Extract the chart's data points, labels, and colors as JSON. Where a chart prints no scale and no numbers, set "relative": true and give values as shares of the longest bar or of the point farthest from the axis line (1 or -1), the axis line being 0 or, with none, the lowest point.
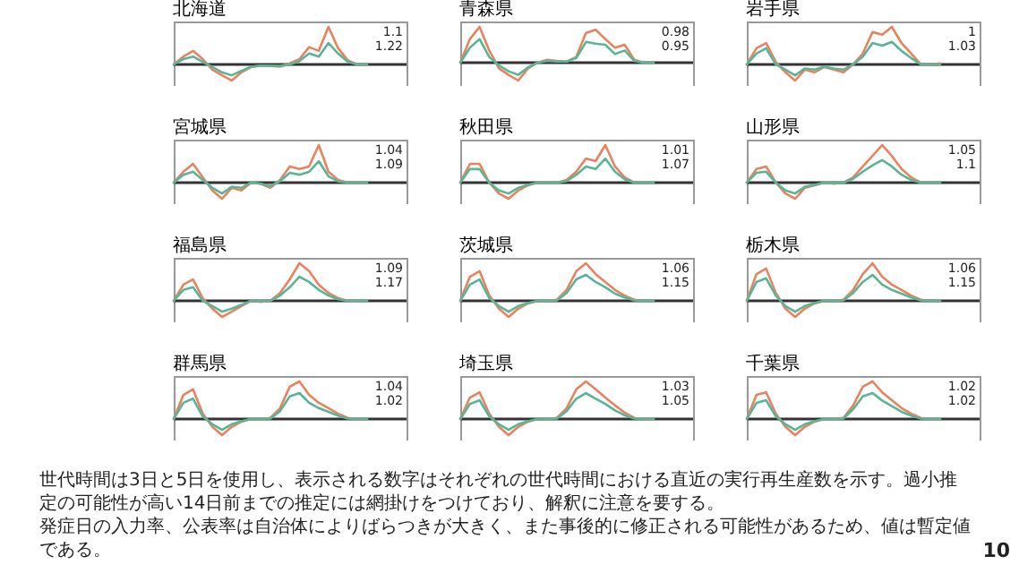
{
  "chart_data": [
    {
      "type": "line",
      "title": "北海道",
      "relative": true,
      "categories": [
        null,
        null,
        null,
        null,
        null,
        null,
        null,
        null,
        null,
        null,
        null,
        null,
        null,
        null,
        null,
        null,
        null,
        null,
        null,
        null,
        null
      ],
      "series": [
        {
          "color": "#e8825f",
          "values": [
            0,
            0.21,
            0.36,
            0.14,
            -0.14,
            -0.29,
            -0.43,
            -0.21,
            -0.07,
            -0.03,
            -0.04,
            -0.06,
            0.03,
            0.14,
            0.46,
            0.36,
            1,
            0.43,
            0.11,
            0,
            0
          ]
        },
        {
          "color": "#5ab497",
          "values": [
            0,
            0.14,
            0.21,
            0.07,
            -0.07,
            -0.21,
            -0.29,
            -0.17,
            -0.06,
            -0.03,
            -0.04,
            -0.04,
            0,
            0.09,
            0.29,
            0.21,
            0.57,
            0.29,
            0.07,
            0,
            0
          ]
        }
      ],
      "annotations": [
        "1.1",
        "1.22"
      ]
    },
    {
      "type": "line",
      "title": "青森県",
      "relative": true,
      "categories": [
        null,
        null,
        null,
        null,
        null,
        null,
        null,
        null,
        null,
        null,
        null,
        null,
        null,
        null,
        null,
        null,
        null,
        null,
        null,
        null,
        null
      ],
      "series": [
        {
          "color": "#e8825f",
          "values": [
            0,
            0.66,
            1,
            0.34,
            -0.16,
            -0.34,
            -0.5,
            -0.16,
            0,
            0.08,
            0.05,
            0.03,
            0.16,
            0.83,
            0.92,
            0.66,
            0.42,
            0.5,
            0.08,
            0,
            0
          ]
        },
        {
          "color": "#5ab497",
          "values": [
            0,
            0.42,
            0.66,
            0.16,
            -0.08,
            -0.24,
            -0.34,
            -0.13,
            0,
            0.05,
            0.03,
            0.03,
            0.13,
            0.58,
            0.53,
            0.5,
            0.24,
            0.34,
            0.05,
            0,
            0
          ]
        }
      ],
      "annotations": [
        "0.98",
        "0.95"
      ]
    },
    {
      "type": "line",
      "title": "岩手県",
      "relative": true,
      "categories": [
        null,
        null,
        null,
        null,
        null,
        null,
        null,
        null,
        null,
        null,
        null,
        null,
        null,
        null,
        null,
        null,
        null,
        null,
        null,
        null,
        null
      ],
      "series": [
        {
          "color": "#e8825f",
          "values": [
            0,
            0.43,
            0.57,
            0.07,
            -0.21,
            -0.43,
            -0.14,
            -0.21,
            -0.07,
            -0.14,
            -0.21,
            0,
            0.29,
            0.86,
            0.79,
            1,
            0.57,
            0.29,
            0,
            0,
            0.03
          ]
        },
        {
          "color": "#5ab497",
          "values": [
            0,
            0.29,
            0.43,
            0,
            -0.14,
            -0.29,
            -0.11,
            -0.14,
            -0.06,
            -0.11,
            -0.14,
            0,
            0.21,
            0.57,
            0.5,
            0.6,
            0.36,
            0.17,
            0,
            0,
            0
          ]
        }
      ],
      "annotations": [
        "1",
        "1.03"
      ]
    },
    {
      "type": "line",
      "title": "宮城県",
      "relative": true,
      "categories": [
        null,
        null,
        null,
        null,
        null,
        null,
        null,
        null,
        null,
        null,
        null,
        null,
        null,
        null,
        null,
        null,
        null,
        null,
        null,
        null,
        null
      ],
      "series": [
        {
          "color": "#e8825f",
          "values": [
            0,
            0.29,
            0.5,
            0.14,
            -0.21,
            -0.43,
            -0.14,
            -0.21,
            0,
            -0.03,
            -0.14,
            0.07,
            0.43,
            0.36,
            0.43,
            1,
            0.29,
            0.07,
            0,
            0,
            0
          ]
        },
        {
          "color": "#5ab497",
          "values": [
            0,
            0.21,
            0.29,
            0.07,
            -0.14,
            -0.29,
            -0.11,
            -0.14,
            0,
            -0.03,
            -0.09,
            0.04,
            0.26,
            0.21,
            0.29,
            0.57,
            0.17,
            0.03,
            0,
            0,
            0
          ]
        }
      ],
      "annotations": [
        "1.04",
        "1.09"
      ]
    },
    {
      "type": "line",
      "title": "秋田県",
      "relative": true,
      "categories": [
        null,
        null,
        null,
        null,
        null,
        null,
        null,
        null,
        null,
        null,
        null,
        null,
        null,
        null,
        null,
        null,
        null,
        null,
        null,
        null,
        null
      ],
      "series": [
        {
          "color": "#e8825f",
          "values": [
            0,
            0.5,
            0.5,
            0,
            -0.29,
            -0.43,
            -0.21,
            -0.07,
            0,
            0,
            0,
            0.07,
            0.29,
            0.64,
            0.57,
            1,
            0.43,
            0.14,
            0,
            0,
            0
          ]
        },
        {
          "color": "#5ab497",
          "values": [
            0,
            0.36,
            0.36,
            0,
            -0.21,
            -0.29,
            -0.14,
            -0.06,
            0,
            0,
            0,
            0.04,
            0.21,
            0.43,
            0.36,
            0.64,
            0.29,
            0.09,
            0,
            0,
            0
          ]
        }
      ],
      "annotations": [
        "1.01",
        "1.07"
      ]
    },
    {
      "type": "line",
      "title": "山形県",
      "relative": true,
      "categories": [
        null,
        null,
        null,
        null,
        null,
        null,
        null,
        null,
        null,
        null,
        null,
        null,
        null,
        null,
        null,
        null,
        null,
        null,
        null,
        null,
        null
      ],
      "series": [
        {
          "color": "#e8825f",
          "values": [
            0,
            0.36,
            0.43,
            0,
            -0.29,
            -0.43,
            -0.14,
            -0.07,
            0,
            -0.03,
            0,
            0.14,
            0.43,
            0.71,
            1,
            0.71,
            0.36,
            0.14,
            0,
            0,
            0
          ]
        },
        {
          "color": "#5ab497",
          "values": [
            0,
            0.26,
            0.29,
            0,
            -0.21,
            -0.29,
            -0.11,
            -0.06,
            0,
            -0.01,
            0,
            0.1,
            0.29,
            0.46,
            0.6,
            0.43,
            0.21,
            0.07,
            0,
            0,
            0
          ]
        }
      ],
      "annotations": [
        "1.05",
        "1.1"
      ]
    },
    {
      "type": "line",
      "title": "福島県",
      "relative": true,
      "categories": [
        null,
        null,
        null,
        null,
        null,
        null,
        null,
        null,
        null,
        null,
        null,
        null,
        null,
        null,
        null,
        null,
        null,
        null,
        null,
        null,
        null
      ],
      "series": [
        {
          "color": "#e8825f",
          "values": [
            0,
            0.43,
            0.57,
            0.07,
            -0.21,
            -0.43,
            -0.29,
            -0.14,
            0,
            -0.03,
            0,
            0.21,
            0.57,
            1,
            0.79,
            0.43,
            0.21,
            0.07,
            0,
            0,
            0
          ]
        },
        {
          "color": "#5ab497",
          "values": [
            0,
            0.29,
            0.36,
            0,
            -0.14,
            -0.29,
            -0.21,
            -0.11,
            0,
            -0.01,
            0,
            0.14,
            0.36,
            0.64,
            0.5,
            0.29,
            0.14,
            0.04,
            0,
            0,
            0
          ]
        }
      ],
      "annotations": [
        "1.09",
        "1.17"
      ]
    },
    {
      "type": "line",
      "title": "茨城県",
      "relative": true,
      "categories": [
        null,
        null,
        null,
        null,
        null,
        null,
        null,
        null,
        null,
        null,
        null,
        null,
        null,
        null,
        null,
        null,
        null,
        null,
        null,
        null,
        null
      ],
      "series": [
        {
          "color": "#e8825f",
          "values": [
            0,
            0.64,
            0.79,
            0.14,
            -0.21,
            -0.43,
            -0.21,
            -0.07,
            0,
            0,
            0.03,
            0.29,
            0.79,
            1,
            0.71,
            0.5,
            0.29,
            0.14,
            0.03,
            0,
            0
          ]
        },
        {
          "color": "#5ab497",
          "values": [
            0,
            0.43,
            0.57,
            0.07,
            -0.14,
            -0.29,
            -0.14,
            -0.06,
            0,
            0,
            0.01,
            0.21,
            0.57,
            0.69,
            0.5,
            0.36,
            0.19,
            0.09,
            0.01,
            0,
            0
          ]
        }
      ],
      "annotations": [
        "1.06",
        "1.15"
      ]
    },
    {
      "type": "line",
      "title": "栃木県",
      "relative": true,
      "categories": [
        null,
        null,
        null,
        null,
        null,
        null,
        null,
        null,
        null,
        null,
        null,
        null,
        null,
        null,
        null,
        null,
        null,
        null,
        null,
        null,
        null
      ],
      "series": [
        {
          "color": "#e8825f",
          "values": [
            0,
            0.71,
            0.86,
            0.21,
            -0.21,
            -0.43,
            -0.21,
            -0.07,
            0,
            0,
            0.03,
            0.29,
            0.71,
            1,
            0.64,
            0.43,
            0.29,
            0.14,
            0.03,
            0,
            0
          ]
        },
        {
          "color": "#5ab497",
          "values": [
            0,
            0.5,
            0.6,
            0.14,
            -0.14,
            -0.29,
            -0.14,
            -0.06,
            0,
            0,
            0.01,
            0.21,
            0.5,
            0.69,
            0.43,
            0.29,
            0.19,
            0.09,
            0.01,
            0,
            0
          ]
        }
      ],
      "annotations": [
        "1.06",
        "1.15"
      ]
    },
    {
      "type": "line",
      "title": "群馬県",
      "relative": true,
      "categories": [
        null,
        null,
        null,
        null,
        null,
        null,
        null,
        null,
        null,
        null,
        null,
        null,
        null,
        null,
        null,
        null,
        null,
        null,
        null,
        null,
        null
      ],
      "series": [
        {
          "color": "#e8825f",
          "values": [
            0,
            0.64,
            0.79,
            0.14,
            -0.21,
            -0.43,
            -0.21,
            -0.07,
            0,
            0,
            0.03,
            0.29,
            0.86,
            1,
            0.64,
            0.43,
            0.29,
            0.14,
            0.03,
            0,
            0
          ]
        },
        {
          "color": "#5ab497",
          "values": [
            0,
            0.43,
            0.54,
            0.07,
            -0.14,
            -0.29,
            -0.14,
            -0.06,
            0,
            0,
            0.01,
            0.21,
            0.6,
            0.69,
            0.43,
            0.29,
            0.19,
            0.09,
            0.01,
            0,
            0
          ]
        }
      ],
      "annotations": [
        "1.04",
        "1.02"
      ]
    },
    {
      "type": "line",
      "title": "埼玉県",
      "relative": true,
      "categories": [
        null,
        null,
        null,
        null,
        null,
        null,
        null,
        null,
        null,
        null,
        null,
        null,
        null,
        null,
        null,
        null,
        null,
        null,
        null,
        null,
        null
      ],
      "series": [
        {
          "color": "#e8825f",
          "values": [
            0,
            0.57,
            0.71,
            0.14,
            -0.21,
            -0.43,
            -0.21,
            -0.07,
            0,
            0,
            0.03,
            0.29,
            0.79,
            1,
            0.79,
            0.57,
            0.36,
            0.17,
            0.03,
            0,
            0
          ]
        },
        {
          "color": "#5ab497",
          "values": [
            0,
            0.4,
            0.5,
            0.07,
            -0.14,
            -0.29,
            -0.14,
            -0.06,
            0,
            0,
            0.01,
            0.21,
            0.54,
            0.69,
            0.54,
            0.4,
            0.23,
            0.1,
            0.01,
            0,
            0
          ]
        }
      ],
      "annotations": [
        "1.03",
        "1.05"
      ]
    },
    {
      "type": "line",
      "title": "千葉県",
      "relative": true,
      "categories": [
        null,
        null,
        null,
        null,
        null,
        null,
        null,
        null,
        null,
        null,
        null,
        null,
        null,
        null,
        null,
        null,
        null,
        null,
        null,
        null,
        null
      ],
      "series": [
        {
          "color": "#e8825f",
          "values": [
            0,
            0.64,
            0.71,
            0.14,
            -0.21,
            -0.43,
            -0.21,
            -0.07,
            0,
            0,
            0.03,
            0.36,
            0.86,
            1,
            0.71,
            0.5,
            0.29,
            0.14,
            0.03,
            0,
            0
          ]
        },
        {
          "color": "#5ab497",
          "values": [
            0,
            0.43,
            0.5,
            0.07,
            -0.14,
            -0.29,
            -0.14,
            -0.06,
            0,
            0,
            0.01,
            0.26,
            0.6,
            0.69,
            0.49,
            0.34,
            0.19,
            0.09,
            0.01,
            0,
            0
          ]
        }
      ],
      "annotations": [
        "1.02",
        "1.02"
      ]
    },
    {
      "type": "other",
      "annotations": [
        "世代時間は3日と5日を使用し、表示される数字はそれぞれの世代時間における直近の実行再生産数を示す。過小推定の可能性が高い14日前までの推定には網掛けをつけており、解釈に注意を要する。",
        "発症日の入力率、公表率は自治体によりばらつきが大きく、また事後的に修正される可能性があるため、値は暫定値である。",
        "10"
      ]
    }
  ]
}
